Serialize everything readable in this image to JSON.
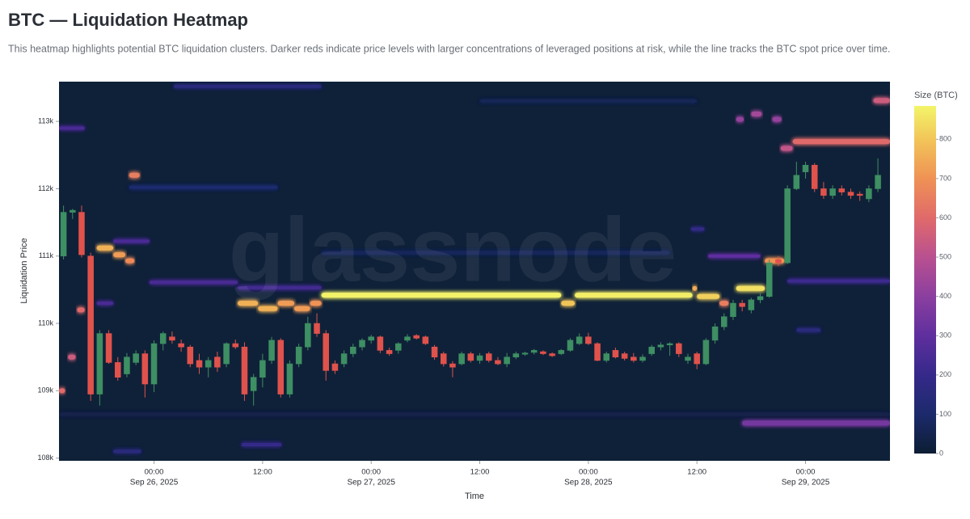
{
  "chart_data": {
    "type": "heatmap",
    "title": "BTC — Liquidation Heatmap",
    "subtitle": "This heatmap highlights potential BTC liquidation clusters. Darker reds indicate price levels with larger concentrations of leveraged positions at risk, while the line tracks the BTC spot price over time.",
    "watermark": "glassnode",
    "y_label": "Liquidation Price",
    "x_label": "Time",
    "colorbar_label": "Size (BTC)",
    "background": "#0f2138",
    "up_color": "#3e8f63",
    "down_color": "#e0524c",
    "xlim": [
      "2025-09-25 13:30",
      "2025-09-29 09:20"
    ],
    "xticks": [
      {
        "value": "2025-09-26 00:00",
        "label": "00:00",
        "date": "Sep 26, 2025"
      },
      {
        "value": "2025-09-26 12:00",
        "label": "12:00"
      },
      {
        "value": "2025-09-27 00:00",
        "label": "00:00",
        "date": "Sep 27, 2025"
      },
      {
        "value": "2025-09-27 12:00",
        "label": "12:00"
      },
      {
        "value": "2025-09-28 00:00",
        "label": "00:00",
        "date": "Sep 28, 2025"
      },
      {
        "value": "2025-09-28 12:00",
        "label": "12:00"
      },
      {
        "value": "2025-09-29 00:00",
        "label": "00:00",
        "date": "Sep 29, 2025"
      }
    ],
    "ylim": [
      107960,
      113590
    ],
    "yticks": [
      {
        "value": 108000,
        "label": "108k"
      },
      {
        "value": 109000,
        "label": "109k"
      },
      {
        "value": 110000,
        "label": "110k"
      },
      {
        "value": 111000,
        "label": "111k"
      },
      {
        "value": 112000,
        "label": "112k"
      },
      {
        "value": 113000,
        "label": "113k"
      }
    ],
    "zlim": [
      0,
      885
    ],
    "zticks": [
      0,
      100,
      200,
      300,
      400,
      500,
      600,
      700,
      800
    ],
    "colorscale": [
      [
        0,
        "#0c1d33"
      ],
      [
        100,
        "#1c2a6b"
      ],
      [
        200,
        "#35298a"
      ],
      [
        300,
        "#5f2f9e"
      ],
      [
        400,
        "#8b3f9f"
      ],
      [
        500,
        "#b95090"
      ],
      [
        600,
        "#e06a6a"
      ],
      [
        700,
        "#ef9255"
      ],
      [
        800,
        "#f2c558"
      ],
      [
        885,
        "#f3f56a"
      ]
    ],
    "bands": [
      {
        "start": "2025-09-25 13:30",
        "end": "2025-09-29 09:20",
        "price": 108650,
        "size": 40
      },
      {
        "start": "2025-09-26 18:30",
        "end": "2025-09-28 09:00",
        "price": 111050,
        "size": 70
      },
      {
        "start": "2025-09-27 12:00",
        "end": "2025-09-28 12:00",
        "price": 113300,
        "size": 60
      },
      {
        "start": "2025-09-26 02:10",
        "end": "2025-09-26 18:30",
        "price": 113520,
        "size": 150
      },
      {
        "start": "2025-09-25 21:15",
        "end": "2025-09-26 13:40",
        "price": 112020,
        "size": 110
      },
      {
        "start": "2025-09-25 23:30",
        "end": "2025-09-26 09:15",
        "price": 110610,
        "size": 250
      },
      {
        "start": "2025-09-26 09:15",
        "end": "2025-09-26 18:30",
        "price": 110530,
        "size": 230
      },
      {
        "start": "2025-09-25 19:30",
        "end": "2025-09-25 23:30",
        "price": 111220,
        "size": 250
      },
      {
        "start": "2025-09-28 22:00",
        "end": "2025-09-29 09:20",
        "price": 110630,
        "size": 220
      },
      {
        "start": "2025-09-28 13:15",
        "end": "2025-09-28 19:00",
        "price": 111000,
        "size": 300
      },
      {
        "start": "2025-09-25 13:30",
        "end": "2025-09-25 16:20",
        "price": 112900,
        "size": 250
      },
      {
        "start": "2025-09-25 17:40",
        "end": "2025-09-25 19:30",
        "price": 110300,
        "size": 250
      },
      {
        "start": "2025-09-26 09:40",
        "end": "2025-09-26 14:05",
        "price": 108200,
        "size": 200
      },
      {
        "start": "2025-09-25 19:30",
        "end": "2025-09-25 22:35",
        "price": 108100,
        "size": 150
      },
      {
        "start": "2025-09-28 11:20",
        "end": "2025-09-28 12:50",
        "price": 111400,
        "size": 180
      },
      {
        "start": "2025-09-28 23:00",
        "end": "2025-09-29 01:40",
        "price": 109900,
        "size": 150
      },
      {
        "start": "2025-09-28 17:00",
        "end": "2025-09-29 09:20",
        "price": 108520,
        "size": 350
      },
      {
        "start": "2025-09-26 18:30",
        "end": "2025-09-27 21:00",
        "price": 110420,
        "size": 880
      },
      {
        "start": "2025-09-27 21:00",
        "end": "2025-09-27 22:30",
        "price": 110300,
        "size": 800
      },
      {
        "start": "2025-09-27 22:30",
        "end": "2025-09-28 11:30",
        "price": 110420,
        "size": 870
      },
      {
        "start": "2025-09-28 11:30",
        "end": "2025-09-28 12:00",
        "price": 110520,
        "size": 750
      },
      {
        "start": "2025-09-28 12:00",
        "end": "2025-09-28 14:30",
        "price": 110400,
        "size": 820
      },
      {
        "start": "2025-09-28 14:30",
        "end": "2025-09-28 15:30",
        "price": 110300,
        "size": 650
      },
      {
        "start": "2025-09-26 09:15",
        "end": "2025-09-26 11:30",
        "price": 110300,
        "size": 760
      },
      {
        "start": "2025-09-26 11:30",
        "end": "2025-09-26 13:40",
        "price": 110220,
        "size": 760
      },
      {
        "start": "2025-09-26 13:40",
        "end": "2025-09-26 15:30",
        "price": 110300,
        "size": 720
      },
      {
        "start": "2025-09-26 15:30",
        "end": "2025-09-26 17:15",
        "price": 110220,
        "size": 720
      },
      {
        "start": "2025-09-26 17:15",
        "end": "2025-09-26 18:30",
        "price": 110300,
        "size": 700
      },
      {
        "start": "2025-09-28 16:20",
        "end": "2025-09-28 19:30",
        "price": 110520,
        "size": 850
      },
      {
        "start": "2025-09-28 19:30",
        "end": "2025-09-28 21:40",
        "price": 110930,
        "size": 700
      },
      {
        "start": "2025-09-25 17:40",
        "end": "2025-09-25 19:30",
        "price": 111120,
        "size": 760
      },
      {
        "start": "2025-09-25 19:30",
        "end": "2025-09-25 20:50",
        "price": 111020,
        "size": 720
      },
      {
        "start": "2025-09-25 20:50",
        "end": "2025-09-25 21:50",
        "price": 110930,
        "size": 680
      },
      {
        "start": "2025-09-25 21:15",
        "end": "2025-09-25 22:25",
        "price": 112200,
        "size": 650
      },
      {
        "start": "2025-09-28 22:35",
        "end": "2025-09-29 09:20",
        "price": 112700,
        "size": 600
      },
      {
        "start": "2025-09-28 21:15",
        "end": "2025-09-28 22:35",
        "price": 112600,
        "size": 520
      },
      {
        "start": "2025-09-29 07:30",
        "end": "2025-09-29 09:20",
        "price": 113310,
        "size": 550
      },
      {
        "start": "2025-09-28 16:20",
        "end": "2025-09-28 17:10",
        "price": 113030,
        "size": 420
      },
      {
        "start": "2025-09-28 18:00",
        "end": "2025-09-28 19:10",
        "price": 113110,
        "size": 450
      },
      {
        "start": "2025-09-28 20:20",
        "end": "2025-09-28 21:20",
        "price": 113030,
        "size": 420
      },
      {
        "start": "2025-09-25 15:30",
        "end": "2025-09-25 16:20",
        "price": 110200,
        "size": 600
      },
      {
        "start": "2025-09-25 14:30",
        "end": "2025-09-25 15:20",
        "price": 109500,
        "size": 550
      },
      {
        "start": "2025-09-25 13:30",
        "end": "2025-09-25 14:10",
        "price": 109000,
        "size": 600
      }
    ],
    "candles": {
      "x": [
        "2025-09-25 14:00",
        "2025-09-25 15:00",
        "2025-09-25 16:00",
        "2025-09-25 17:00",
        "2025-09-25 18:00",
        "2025-09-25 19:00",
        "2025-09-25 20:00",
        "2025-09-25 21:00",
        "2025-09-25 22:00",
        "2025-09-25 23:00",
        "2025-09-26 00:00",
        "2025-09-26 01:00",
        "2025-09-26 02:00",
        "2025-09-26 03:00",
        "2025-09-26 04:00",
        "2025-09-26 05:00",
        "2025-09-26 06:00",
        "2025-09-26 07:00",
        "2025-09-26 08:00",
        "2025-09-26 09:00",
        "2025-09-26 10:00",
        "2025-09-26 11:00",
        "2025-09-26 12:00",
        "2025-09-26 13:00",
        "2025-09-26 14:00",
        "2025-09-26 15:00",
        "2025-09-26 16:00",
        "2025-09-26 17:00",
        "2025-09-26 18:00",
        "2025-09-26 19:00",
        "2025-09-26 20:00",
        "2025-09-26 21:00",
        "2025-09-26 22:00",
        "2025-09-26 23:00",
        "2025-09-27 00:00",
        "2025-09-27 01:00",
        "2025-09-27 02:00",
        "2025-09-27 03:00",
        "2025-09-27 04:00",
        "2025-09-27 05:00",
        "2025-09-27 06:00",
        "2025-09-27 07:00",
        "2025-09-27 08:00",
        "2025-09-27 09:00",
        "2025-09-27 10:00",
        "2025-09-27 11:00",
        "2025-09-27 12:00",
        "2025-09-27 13:00",
        "2025-09-27 14:00",
        "2025-09-27 15:00",
        "2025-09-27 16:00",
        "2025-09-27 17:00",
        "2025-09-27 18:00",
        "2025-09-27 19:00",
        "2025-09-27 20:00",
        "2025-09-27 21:00",
        "2025-09-27 22:00",
        "2025-09-27 23:00",
        "2025-09-28 00:00",
        "2025-09-28 01:00",
        "2025-09-28 02:00",
        "2025-09-28 03:00",
        "2025-09-28 04:00",
        "2025-09-28 05:00",
        "2025-09-28 06:00",
        "2025-09-28 07:00",
        "2025-09-28 08:00",
        "2025-09-28 09:00",
        "2025-09-28 10:00",
        "2025-09-28 11:00",
        "2025-09-28 12:00",
        "2025-09-28 13:00",
        "2025-09-28 14:00",
        "2025-09-28 15:00",
        "2025-09-28 16:00",
        "2025-09-28 17:00",
        "2025-09-28 18:00",
        "2025-09-28 19:00",
        "2025-09-28 20:00",
        "2025-09-28 21:00",
        "2025-09-28 22:00",
        "2025-09-28 23:00",
        "2025-09-29 00:00",
        "2025-09-29 01:00",
        "2025-09-29 02:00",
        "2025-09-29 03:00",
        "2025-09-29 04:00",
        "2025-09-29 05:00",
        "2025-09-29 06:00",
        "2025-09-29 07:00",
        "2025-09-29 08:00"
      ],
      "open": [
        111000,
        111650,
        111650,
        111000,
        108950,
        109850,
        109420,
        109250,
        109420,
        109550,
        109100,
        109700,
        109800,
        109700,
        109650,
        109450,
        109350,
        109500,
        109400,
        109700,
        109650,
        109000,
        109200,
        109450,
        109750,
        108950,
        109400,
        109650,
        110000,
        109850,
        109400,
        109400,
        109550,
        109650,
        109750,
        109800,
        109600,
        109600,
        109750,
        109820,
        109800,
        109650,
        109550,
        109400,
        109400,
        109550,
        109450,
        109550,
        109450,
        109400,
        109500,
        109550,
        109570,
        109580,
        109550,
        109550,
        109600,
        109700,
        109800,
        109700,
        109450,
        109600,
        109550,
        109500,
        109450,
        109550,
        109650,
        109680,
        109700,
        109450,
        109550,
        109400,
        109750,
        109950,
        110100,
        110300,
        110200,
        110350,
        110400,
        110950,
        110900,
        112000,
        112250,
        112350,
        112000,
        111900,
        112000,
        111950,
        111920,
        111850,
        112000
      ],
      "high": [
        111750,
        111700,
        111750,
        111050,
        109900,
        109900,
        109500,
        109560,
        109600,
        109600,
        109750,
        109880,
        109880,
        109760,
        109680,
        109550,
        109500,
        109580,
        109720,
        109760,
        109720,
        109250,
        109550,
        109800,
        109780,
        109450,
        109700,
        110100,
        110150,
        109900,
        109450,
        109600,
        109700,
        109780,
        109830,
        109820,
        109640,
        109720,
        109840,
        109840,
        109820,
        109680,
        109580,
        109440,
        109580,
        109580,
        109560,
        109580,
        109500,
        109560,
        109580,
        109580,
        109620,
        109600,
        109570,
        109620,
        109780,
        109850,
        109860,
        109720,
        109580,
        109640,
        109580,
        109560,
        109540,
        109680,
        109720,
        109720,
        109720,
        109550,
        109580,
        109780,
        110000,
        110150,
        110350,
        110350,
        110380,
        110450,
        110950,
        111000,
        112050,
        112400,
        112400,
        112380,
        112100,
        112050,
        112050,
        112000,
        111960,
        112050,
        112450
      ],
      "low": [
        110950,
        111550,
        110980,
        108850,
        108780,
        109400,
        109150,
        109200,
        109380,
        108900,
        108980,
        109600,
        109700,
        109580,
        109350,
        109250,
        109200,
        109280,
        109350,
        109620,
        108850,
        108780,
        109050,
        109400,
        108900,
        108900,
        109350,
        109600,
        109800,
        109150,
        109250,
        109350,
        109500,
        109600,
        109700,
        109560,
        109520,
        109550,
        109720,
        109760,
        109680,
        109460,
        109360,
        109200,
        109380,
        109420,
        109400,
        109420,
        109380,
        109350,
        109470,
        109520,
        109540,
        109530,
        109500,
        109530,
        109580,
        109680,
        109680,
        109440,
        109420,
        109480,
        109450,
        109420,
        109420,
        109520,
        109600,
        109520,
        109500,
        109400,
        109320,
        109380,
        109700,
        109900,
        110050,
        110180,
        110150,
        110300,
        110380,
        110850,
        110880,
        111980,
        112150,
        111950,
        111850,
        111850,
        111900,
        111850,
        111820,
        111800,
        111950
      ],
      "close": [
        111650,
        111680,
        111020,
        108950,
        109850,
        109420,
        109200,
        109500,
        109550,
        109100,
        109700,
        109850,
        109750,
        109650,
        109400,
        109350,
        109450,
        109350,
        109700,
        109650,
        108950,
        109200,
        109450,
        109750,
        108950,
        109400,
        109650,
        110000,
        109850,
        109300,
        109300,
        109550,
        109650,
        109750,
        109800,
        109600,
        109550,
        109700,
        109800,
        109780,
        109700,
        109500,
        109400,
        109350,
        109550,
        109450,
        109520,
        109450,
        109400,
        109500,
        109550,
        109560,
        109600,
        109550,
        109520,
        109600,
        109750,
        109800,
        109700,
        109450,
        109550,
        109500,
        109480,
        109450,
        109500,
        109650,
        109680,
        109700,
        109550,
        109500,
        109400,
        109750,
        109950,
        110100,
        110300,
        110250,
        110350,
        110400,
        110900,
        110900,
        112000,
        112200,
        112350,
        112000,
        111900,
        112000,
        111950,
        111900,
        111900,
        112000,
        112200
      ]
    }
  }
}
